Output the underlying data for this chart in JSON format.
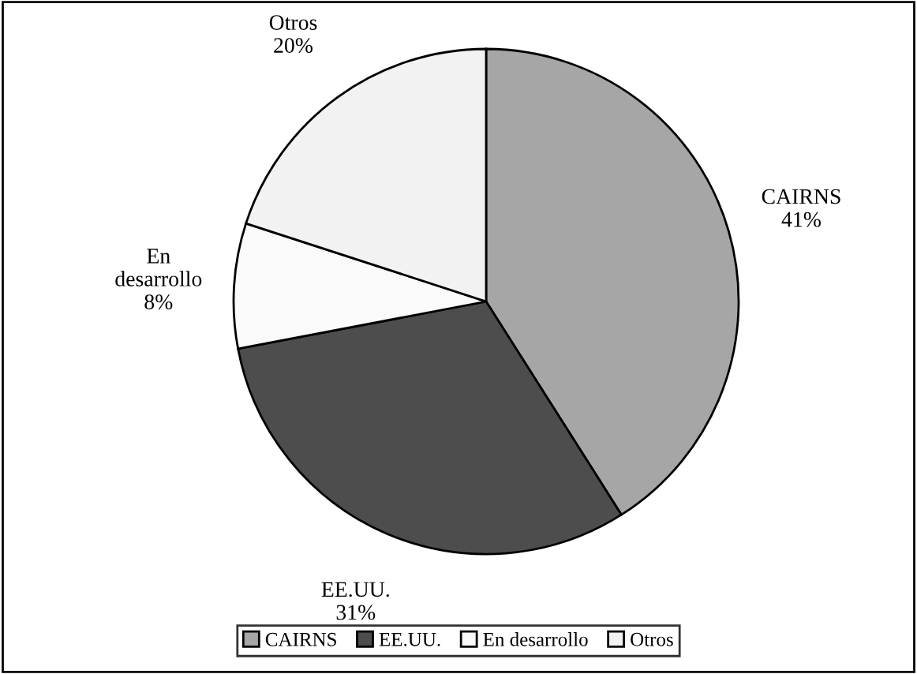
{
  "chart_data": {
    "type": "pie",
    "categories": [
      "CAIRNS",
      "EE.UU.",
      "En desarrollo",
      "Otros"
    ],
    "values": [
      41,
      31,
      8,
      20
    ],
    "colors": [
      "#a6a6a6",
      "#4d4d4d",
      "#fafafa",
      "#f2f2f2"
    ],
    "value_labels": [
      "41%",
      "31%",
      "8%",
      "20%"
    ],
    "legend": "bottom"
  }
}
